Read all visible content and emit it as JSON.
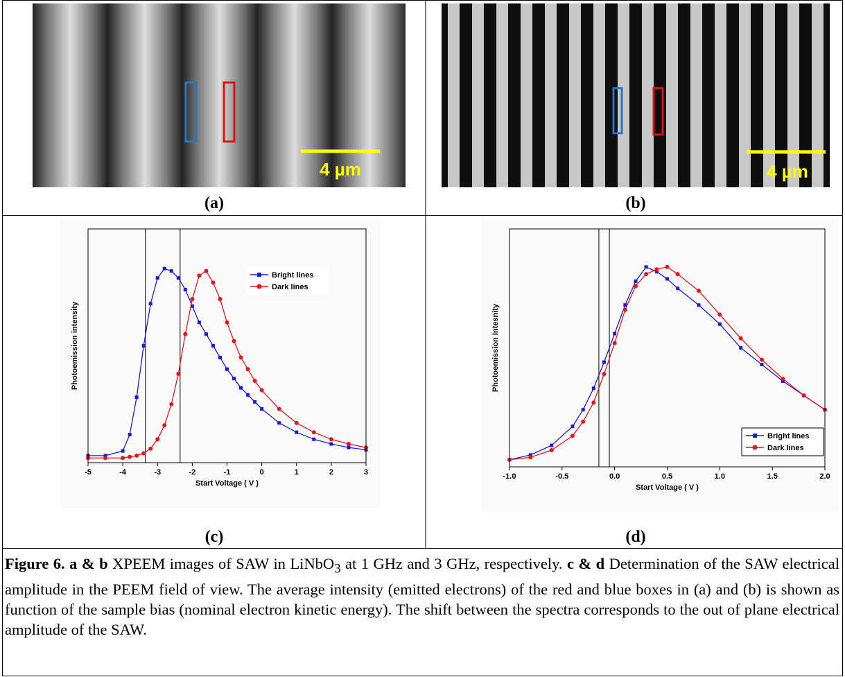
{
  "panels": [
    "(a)",
    "(b)",
    "(c)",
    "(d)"
  ],
  "images": [
    {
      "scale_label": "4 µm"
    },
    {
      "scale_label": "4 µm"
    }
  ],
  "chart_data": [
    {
      "type": "line",
      "xlabel": "Start Voltage ( V )",
      "ylabel": "Photoemission intensity",
      "x": [
        -5,
        -4.5,
        -4,
        -3.8,
        -3.6,
        -3.4,
        -3.2,
        -3.0,
        -2.8,
        -2.6,
        -2.4,
        -2.2,
        -2.0,
        -1.8,
        -1.6,
        -1.4,
        -1.2,
        -1.0,
        -0.8,
        -0.6,
        -0.4,
        -0.2,
        0,
        0.5,
        1,
        1.5,
        2,
        2.5,
        3
      ],
      "series": [
        {
          "name": "Bright lines",
          "color": "#1a1adc",
          "marker": "square",
          "values": [
            0.03,
            0.03,
            0.05,
            0.12,
            0.28,
            0.5,
            0.68,
            0.79,
            0.83,
            0.82,
            0.79,
            0.74,
            0.67,
            0.6,
            0.55,
            0.5,
            0.45,
            0.4,
            0.36,
            0.32,
            0.29,
            0.26,
            0.23,
            0.17,
            0.13,
            0.1,
            0.08,
            0.065,
            0.055
          ]
        },
        {
          "name": "Dark lines",
          "color": "#e8141b",
          "marker": "circle",
          "values": [
            0.02,
            0.02,
            0.02,
            0.025,
            0.03,
            0.04,
            0.06,
            0.1,
            0.16,
            0.25,
            0.38,
            0.55,
            0.7,
            0.8,
            0.82,
            0.77,
            0.7,
            0.6,
            0.52,
            0.45,
            0.4,
            0.35,
            0.31,
            0.23,
            0.17,
            0.13,
            0.1,
            0.08,
            0.065
          ]
        }
      ],
      "vlines": [
        -3.35,
        -2.35
      ],
      "xlim": [
        -5,
        3
      ],
      "xticks": [
        -5,
        -4,
        -3,
        -2,
        -1,
        0,
        1,
        2,
        3
      ],
      "ylim": [
        0,
        1
      ],
      "legend": "upper right"
    },
    {
      "type": "line",
      "xlabel": "Start Voltage ( V )",
      "ylabel": "Photoemission Intesnity",
      "x": [
        -1,
        -0.8,
        -0.6,
        -0.4,
        -0.3,
        -0.2,
        -0.1,
        0,
        0.1,
        0.2,
        0.3,
        0.4,
        0.5,
        0.6,
        0.8,
        1.0,
        1.2,
        1.4,
        1.6,
        1.8,
        2.0
      ],
      "series": [
        {
          "name": "Bright lines",
          "color": "#1a1adc",
          "marker": "square",
          "values": [
            0.03,
            0.05,
            0.09,
            0.17,
            0.24,
            0.33,
            0.44,
            0.56,
            0.68,
            0.78,
            0.84,
            0.82,
            0.79,
            0.75,
            0.68,
            0.6,
            0.5,
            0.43,
            0.36,
            0.3,
            0.24
          ]
        },
        {
          "name": "Dark lines",
          "color": "#e8141b",
          "marker": "circle",
          "values": [
            0.03,
            0.04,
            0.07,
            0.13,
            0.19,
            0.27,
            0.39,
            0.52,
            0.66,
            0.76,
            0.81,
            0.83,
            0.84,
            0.81,
            0.74,
            0.64,
            0.54,
            0.45,
            0.37,
            0.3,
            0.24
          ]
        }
      ],
      "vlines": [
        -0.15,
        -0.05
      ],
      "xlim": [
        -1,
        2
      ],
      "xticks": [
        {
          "value": -1,
          "label": "-1.0"
        },
        {
          "value": -0.5,
          "label": "-0.5"
        },
        {
          "value": 0,
          "label": "0.0"
        },
        {
          "value": 0.5,
          "label": "0.5"
        },
        {
          "value": 1,
          "label": "1.0"
        },
        {
          "value": 1.5,
          "label": "1.5"
        },
        {
          "value": 2,
          "label": "2.0"
        }
      ],
      "ylim": [
        0,
        1
      ],
      "legend": "lower right"
    }
  ],
  "caption": [
    "Figure 6. a & b",
    " XPEEM images of SAW in LiNbO",
    "3",
    " at 1 GHz and 3 GHz, respectively. ",
    "c & d",
    " Determination of the SAW electrical amplitude in the PEEM field of view. The average intensity (emitted electrons) of the red and blue boxes in (a) and (b) is shown as function of the sample bias (nominal electron kinetic energy). The shift between the spectra corresponds to the out of plane electrical amplitude of the SAW."
  ]
}
